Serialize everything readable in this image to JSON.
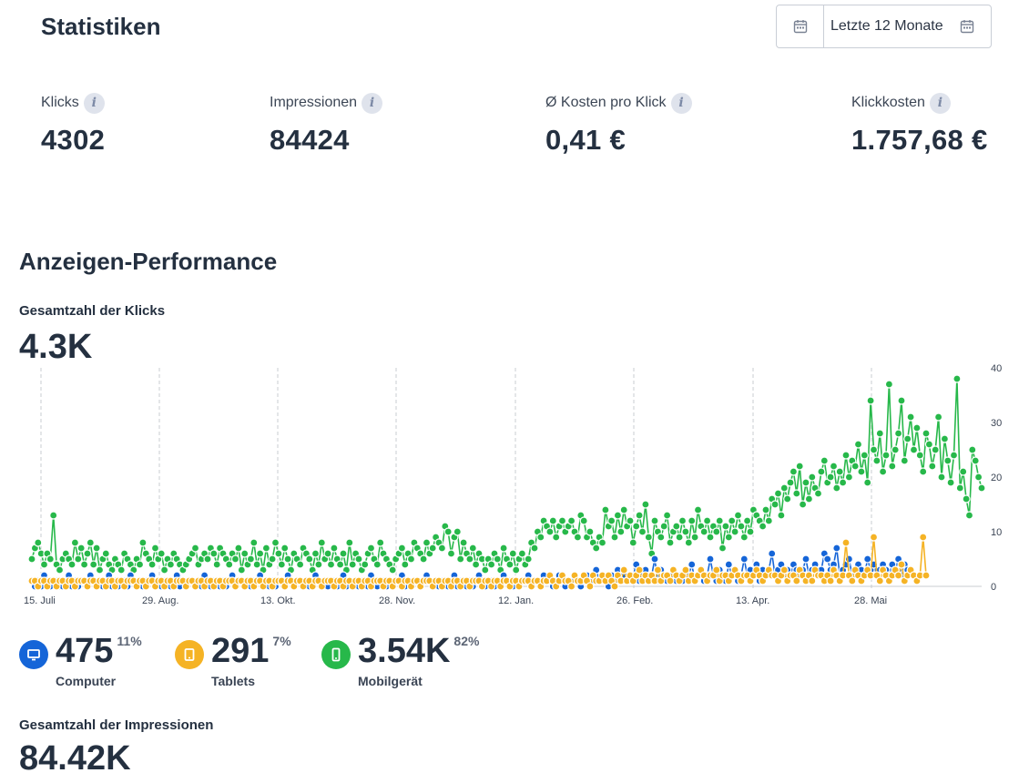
{
  "header": {
    "title": "Statistiken",
    "date_range": {
      "label": "Letzte 12 Monate",
      "button_icon": "calendar-icon",
      "field_icon": "calendar-icon"
    }
  },
  "kpis": [
    {
      "label": "Klicks",
      "value": "4302",
      "icon": "info-icon"
    },
    {
      "label": "Impressionen",
      "value": "84424",
      "icon": "info-icon"
    },
    {
      "label": "Ø Kosten pro Klick",
      "value": "0,41 €",
      "icon": "info-icon"
    },
    {
      "label": "Klickkosten",
      "value": "1.757,68 €",
      "icon": "info-icon"
    }
  ],
  "performance": {
    "title": "Anzeigen-Performance",
    "clicks_title": "Gesamtzahl der Klicks",
    "clicks_total": "4.3K",
    "impressions_title": "Gesamtzahl der Impressionen",
    "impressions_total": "84.42K"
  },
  "devices": [
    {
      "label": "Computer",
      "value": "475",
      "pct": "11%",
      "color": "#1565d8",
      "icon": "monitor-icon"
    },
    {
      "label": "Tablets",
      "value": "291",
      "pct": "7%",
      "color": "#f5b325",
      "icon": "tablet-icon"
    },
    {
      "label": "Mobilgerät",
      "value": "3.54K",
      "pct": "82%",
      "color": "#27b84a",
      "icon": "smartphone-icon"
    }
  ],
  "chart_data": {
    "type": "line",
    "x_tick_labels": [
      "15. Juli",
      "29. Aug.",
      "13. Okt.",
      "28. Nov.",
      "12. Jan.",
      "26. Feb.",
      "13. Apr.",
      "28. Mai"
    ],
    "y_tick_labels": [
      "0",
      "10",
      "20",
      "30",
      "40"
    ],
    "ylim": [
      0,
      40
    ],
    "grid": "vertical dashed",
    "series": [
      {
        "color": "#27b84a",
        "values": [
          5,
          7,
          8,
          6,
          4,
          6,
          5,
          13,
          4,
          3,
          5,
          6,
          5,
          4,
          8,
          5,
          7,
          4,
          6,
          8,
          4,
          7,
          3,
          5,
          6,
          4,
          3,
          5,
          4,
          3,
          6,
          5,
          4,
          3,
          5,
          4,
          8,
          6,
          5,
          4,
          7,
          5,
          6,
          3,
          5,
          4,
          6,
          5,
          4,
          3,
          4,
          5,
          6,
          7,
          4,
          5,
          6,
          5,
          7,
          6,
          4,
          7,
          6,
          5,
          4,
          6,
          5,
          7,
          3,
          6,
          4,
          5,
          8,
          4,
          6,
          3,
          7,
          4,
          5,
          8,
          6,
          4,
          7,
          5,
          3,
          6,
          5,
          4,
          7,
          6,
          5,
          3,
          6,
          4,
          8,
          5,
          6,
          4,
          7,
          5,
          4,
          6,
          3,
          8,
          4,
          6,
          5,
          3,
          4,
          6,
          7,
          5,
          4,
          8,
          6,
          5,
          4,
          3,
          5,
          6,
          7,
          4,
          6,
          5,
          8,
          7,
          6,
          5,
          8,
          6,
          7,
          9,
          8,
          7,
          11,
          10,
          6,
          9,
          10,
          5,
          8,
          6,
          5,
          7,
          4,
          6,
          5,
          3,
          5,
          4,
          6,
          5,
          3,
          7,
          5,
          4,
          6,
          3,
          5,
          6,
          4,
          5,
          8,
          7,
          10,
          9,
          12,
          11,
          10,
          12,
          9,
          11,
          12,
          10,
          11,
          12,
          10,
          9,
          13,
          12,
          9,
          10,
          8,
          7,
          9,
          8,
          14,
          11,
          12,
          9,
          13,
          10,
          14,
          11,
          12,
          8,
          11,
          13,
          10,
          15,
          9,
          6,
          12,
          10,
          9,
          11,
          13,
          8,
          10,
          11,
          9,
          12,
          10,
          8,
          12,
          9,
          14,
          11,
          10,
          12,
          9,
          11,
          10,
          12,
          7,
          11,
          9,
          12,
          10,
          13,
          11,
          9,
          12,
          10,
          14,
          13,
          12,
          11,
          14,
          12,
          16,
          15,
          17,
          13,
          18,
          16,
          19,
          21,
          17,
          22,
          15,
          19,
          16,
          20,
          18,
          17,
          21,
          23,
          19,
          20,
          22,
          18,
          21,
          19,
          24,
          20,
          23,
          22,
          26,
          21,
          24,
          19,
          34,
          25,
          23,
          28,
          21,
          24,
          37,
          22,
          25,
          28,
          34,
          23,
          27,
          31,
          25,
          29,
          24,
          21,
          28,
          26,
          22,
          25,
          31,
          20,
          27,
          23,
          19,
          24,
          38,
          18,
          21,
          16,
          13,
          25,
          23,
          20,
          18
        ]
      },
      {
        "color": "#1565d8",
        "values": [
          1,
          0,
          1,
          0,
          2,
          1,
          0,
          1,
          1,
          0,
          0,
          1,
          2,
          0,
          1,
          0,
          1,
          1,
          0,
          2,
          1,
          0,
          1,
          0,
          1,
          2,
          0,
          1,
          0,
          1,
          1,
          0,
          2,
          1,
          0,
          1,
          0,
          1,
          1,
          2,
          0,
          1,
          0,
          1,
          1,
          0,
          1,
          2,
          0,
          1,
          0,
          1,
          1,
          0,
          1,
          0,
          2,
          1,
          0,
          1,
          1,
          0,
          1,
          0,
          1,
          2,
          0,
          1,
          1,
          0,
          1,
          0,
          1,
          1,
          2,
          0,
          1,
          0,
          1,
          0,
          1,
          1,
          0,
          2,
          1,
          0,
          1,
          1,
          0,
          1,
          0,
          1,
          2,
          1,
          0,
          1,
          0,
          1,
          1,
          0,
          1,
          2,
          0,
          1,
          0,
          1,
          0,
          1,
          1,
          0,
          2,
          1,
          0,
          1,
          1,
          0,
          1,
          0,
          1,
          1,
          2,
          0,
          1,
          0,
          1,
          1,
          0,
          1,
          2,
          1,
          0,
          1,
          0,
          1,
          1,
          0,
          1,
          2,
          0,
          1,
          1,
          0,
          1,
          0,
          1,
          2,
          1,
          0,
          1,
          1,
          0,
          1,
          0,
          2,
          1,
          1,
          0,
          1,
          0,
          1,
          1,
          2,
          0,
          1,
          1,
          0,
          2,
          1,
          1,
          0,
          1,
          2,
          1,
          0,
          1,
          1,
          2,
          1,
          0,
          1,
          2,
          1,
          1,
          3,
          1,
          2,
          1,
          0,
          2,
          1,
          3,
          1,
          2,
          1,
          1,
          2,
          4,
          1,
          2,
          3,
          1,
          2,
          5,
          1,
          3,
          2,
          1,
          2,
          3,
          1,
          2,
          1,
          3,
          2,
          4,
          1,
          2,
          3,
          1,
          2,
          5,
          2,
          1,
          3,
          2,
          1,
          4,
          2,
          3,
          1,
          2,
          5,
          2,
          3,
          2,
          4,
          1,
          3,
          2,
          3,
          6,
          2,
          3,
          4,
          2,
          3,
          2,
          4,
          3,
          2,
          3,
          5,
          2,
          3,
          4,
          2,
          3,
          6,
          5,
          3,
          4,
          7,
          2,
          3,
          4,
          5,
          2,
          3,
          4,
          3,
          2,
          5,
          3,
          4,
          2,
          3,
          4,
          3,
          2,
          4,
          3,
          5,
          2,
          4,
          3
        ]
      },
      {
        "color": "#f5b325",
        "values": [
          1,
          1,
          0,
          1,
          1,
          0,
          1,
          1,
          0,
          1,
          1,
          0,
          1,
          1,
          0,
          1,
          1,
          1,
          0,
          1,
          1,
          0,
          1,
          1,
          0,
          1,
          1,
          0,
          1,
          1,
          0,
          1,
          1,
          1,
          0,
          1,
          1,
          0,
          1,
          1,
          0,
          1,
          1,
          0,
          1,
          1,
          0,
          1,
          1,
          1,
          0,
          1,
          1,
          0,
          1,
          1,
          0,
          1,
          1,
          0,
          1,
          1,
          0,
          1,
          1,
          1,
          0,
          1,
          1,
          0,
          1,
          1,
          0,
          1,
          1,
          0,
          1,
          1,
          0,
          1,
          1,
          1,
          0,
          1,
          1,
          0,
          1,
          1,
          0,
          1,
          1,
          0,
          1,
          1,
          0,
          1,
          1,
          1,
          0,
          1,
          1,
          0,
          1,
          1,
          0,
          1,
          1,
          0,
          1,
          1,
          0,
          1,
          1,
          1,
          0,
          1,
          1,
          0,
          1,
          1,
          0,
          1,
          1,
          0,
          1,
          1,
          0,
          1,
          1,
          1,
          0,
          1,
          1,
          0,
          1,
          1,
          0,
          1,
          1,
          0,
          1,
          1,
          0,
          1,
          1,
          1,
          0,
          1,
          1,
          0,
          1,
          1,
          0,
          1,
          1,
          0,
          1,
          1,
          0,
          1,
          1,
          1,
          0,
          1,
          1,
          0,
          1,
          1,
          2,
          1,
          0,
          1,
          2,
          1,
          1,
          0,
          2,
          1,
          1,
          2,
          1,
          0,
          2,
          1,
          1,
          2,
          1,
          2,
          1,
          0,
          2,
          1,
          3,
          1,
          2,
          1,
          2,
          3,
          1,
          2,
          1,
          2,
          1,
          3,
          1,
          2,
          2,
          1,
          3,
          2,
          1,
          2,
          3,
          1,
          2,
          1,
          2,
          3,
          2,
          1,
          2,
          2,
          3,
          1,
          2,
          2,
          1,
          2,
          3,
          2,
          1,
          2,
          2,
          1,
          2,
          3,
          2,
          1,
          2,
          3,
          2,
          2,
          1,
          2,
          3,
          1,
          2,
          2,
          1,
          3,
          2,
          1,
          2,
          1,
          3,
          2,
          2,
          1,
          2,
          1,
          3,
          2,
          1,
          2,
          8,
          2,
          1,
          3,
          2,
          1,
          2,
          3,
          2,
          9,
          2,
          1,
          3,
          2,
          1,
          2,
          3,
          2,
          4,
          1,
          2,
          3,
          2,
          1,
          2,
          9,
          2
        ]
      }
    ]
  }
}
